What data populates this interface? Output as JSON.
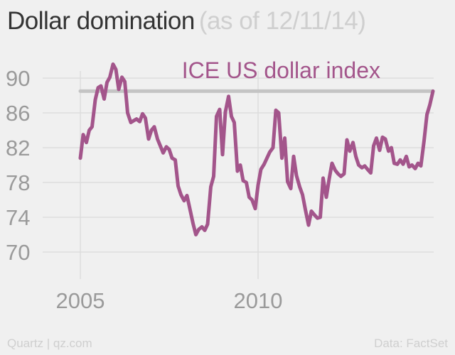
{
  "header": {
    "title": "Dollar domination",
    "subtitle": "(as of 12/11/14)"
  },
  "footer": {
    "credit": "Quartz | qz.com",
    "source": "Data: FactSet"
  },
  "colors": {
    "line": "#a3558b",
    "reference": "#c4c4c4",
    "grid": "#dddddd",
    "tick_text": "#9a9a9a"
  },
  "chart_data": {
    "type": "line",
    "title": "Dollar domination",
    "subtitle": "(as of 12/11/14)",
    "xlabel": "",
    "ylabel": "",
    "xlim": [
      2004.7,
      2014.95
    ],
    "ylim": [
      70,
      90
    ],
    "grid": true,
    "legend": "none",
    "x_ticks": [
      2005,
      2010
    ],
    "x_tick_labels": [
      "2005",
      "2010"
    ],
    "y_ticks": [
      70,
      74,
      78,
      82,
      86,
      90
    ],
    "y_tick_labels": [
      "70",
      "74",
      "78",
      "82",
      "86",
      "90"
    ],
    "annotations": [
      {
        "text": "ICE US dollar index"
      }
    ],
    "reference_line": {
      "y": 88.5
    },
    "series": [
      {
        "x": [
          2005.0,
          2005.08,
          2005.17,
          2005.25,
          2005.33,
          2005.42,
          2005.5,
          2005.58,
          2005.67,
          2005.75,
          2005.83,
          2005.92,
          2006.0,
          2006.08,
          2006.17,
          2006.25,
          2006.33,
          2006.42,
          2006.5,
          2006.58,
          2006.67,
          2006.75,
          2006.83,
          2006.92,
          2007.0,
          2007.08,
          2007.17,
          2007.25,
          2007.33,
          2007.42,
          2007.5,
          2007.58,
          2007.67,
          2007.75,
          2007.83,
          2007.92,
          2008.0,
          2008.08,
          2008.17,
          2008.25,
          2008.33,
          2008.42,
          2008.5,
          2008.58,
          2008.67,
          2008.75,
          2008.83,
          2008.92,
          2009.0,
          2009.08,
          2009.17,
          2009.25,
          2009.33,
          2009.42,
          2009.5,
          2009.58,
          2009.67,
          2009.75,
          2009.83,
          2009.92,
          2010.0,
          2010.08,
          2010.17,
          2010.25,
          2010.33,
          2010.42,
          2010.5,
          2010.58,
          2010.67,
          2010.75,
          2010.83,
          2010.92,
          2011.0,
          2011.08,
          2011.17,
          2011.25,
          2011.33,
          2011.42,
          2011.5,
          2011.58,
          2011.67,
          2011.75,
          2011.83,
          2011.92,
          2012.0,
          2012.08,
          2012.17,
          2012.25,
          2012.33,
          2012.42,
          2012.5,
          2012.58,
          2012.67,
          2012.75,
          2012.83,
          2012.92,
          2013.0,
          2013.08,
          2013.17,
          2013.25,
          2013.33,
          2013.42,
          2013.5,
          2013.58,
          2013.67,
          2013.75,
          2013.83,
          2013.92,
          2014.0,
          2014.08,
          2014.17,
          2014.25,
          2014.33,
          2014.42,
          2014.5,
          2014.58,
          2014.67,
          2014.75,
          2014.83,
          2014.92
        ],
        "y": [
          80.8,
          83.5,
          82.6,
          84.0,
          84.4,
          87.5,
          88.9,
          89.1,
          87.6,
          89.5,
          90.1,
          91.6,
          91.0,
          88.7,
          90.1,
          89.6,
          86.0,
          84.9,
          85.1,
          85.3,
          85.0,
          85.9,
          85.4,
          83.0,
          84.0,
          84.4,
          83.0,
          82.2,
          81.4,
          82.1,
          81.8,
          80.8,
          80.6,
          77.6,
          76.6,
          75.9,
          76.5,
          75.0,
          73.3,
          72.0,
          72.6,
          72.9,
          72.5,
          73.2,
          77.5,
          78.7,
          85.6,
          86.4,
          81.2,
          86.1,
          87.9,
          85.6,
          84.9,
          79.3,
          80.0,
          78.2,
          78.0,
          76.3,
          76.0,
          75.0,
          77.7,
          79.5,
          80.1,
          80.8,
          81.5,
          82.0,
          86.3,
          86.0,
          80.8,
          83.1,
          78.1,
          77.3,
          81.0,
          78.8,
          77.5,
          76.6,
          74.9,
          73.1,
          74.7,
          74.3,
          73.9,
          74.0,
          78.5,
          76.3,
          78.4,
          80.2,
          79.4,
          79.0,
          78.7,
          79.0,
          82.9,
          81.6,
          82.6,
          81.0,
          80.0,
          79.7,
          79.9,
          79.5,
          79.1,
          82.2,
          83.1,
          81.7,
          83.2,
          83.0,
          81.6,
          82.0,
          80.2,
          80.1,
          80.6,
          80.1,
          81.0,
          79.8,
          80.0,
          79.6,
          80.2,
          79.9,
          82.8,
          85.8,
          86.9,
          88.5
        ]
      }
    ]
  }
}
